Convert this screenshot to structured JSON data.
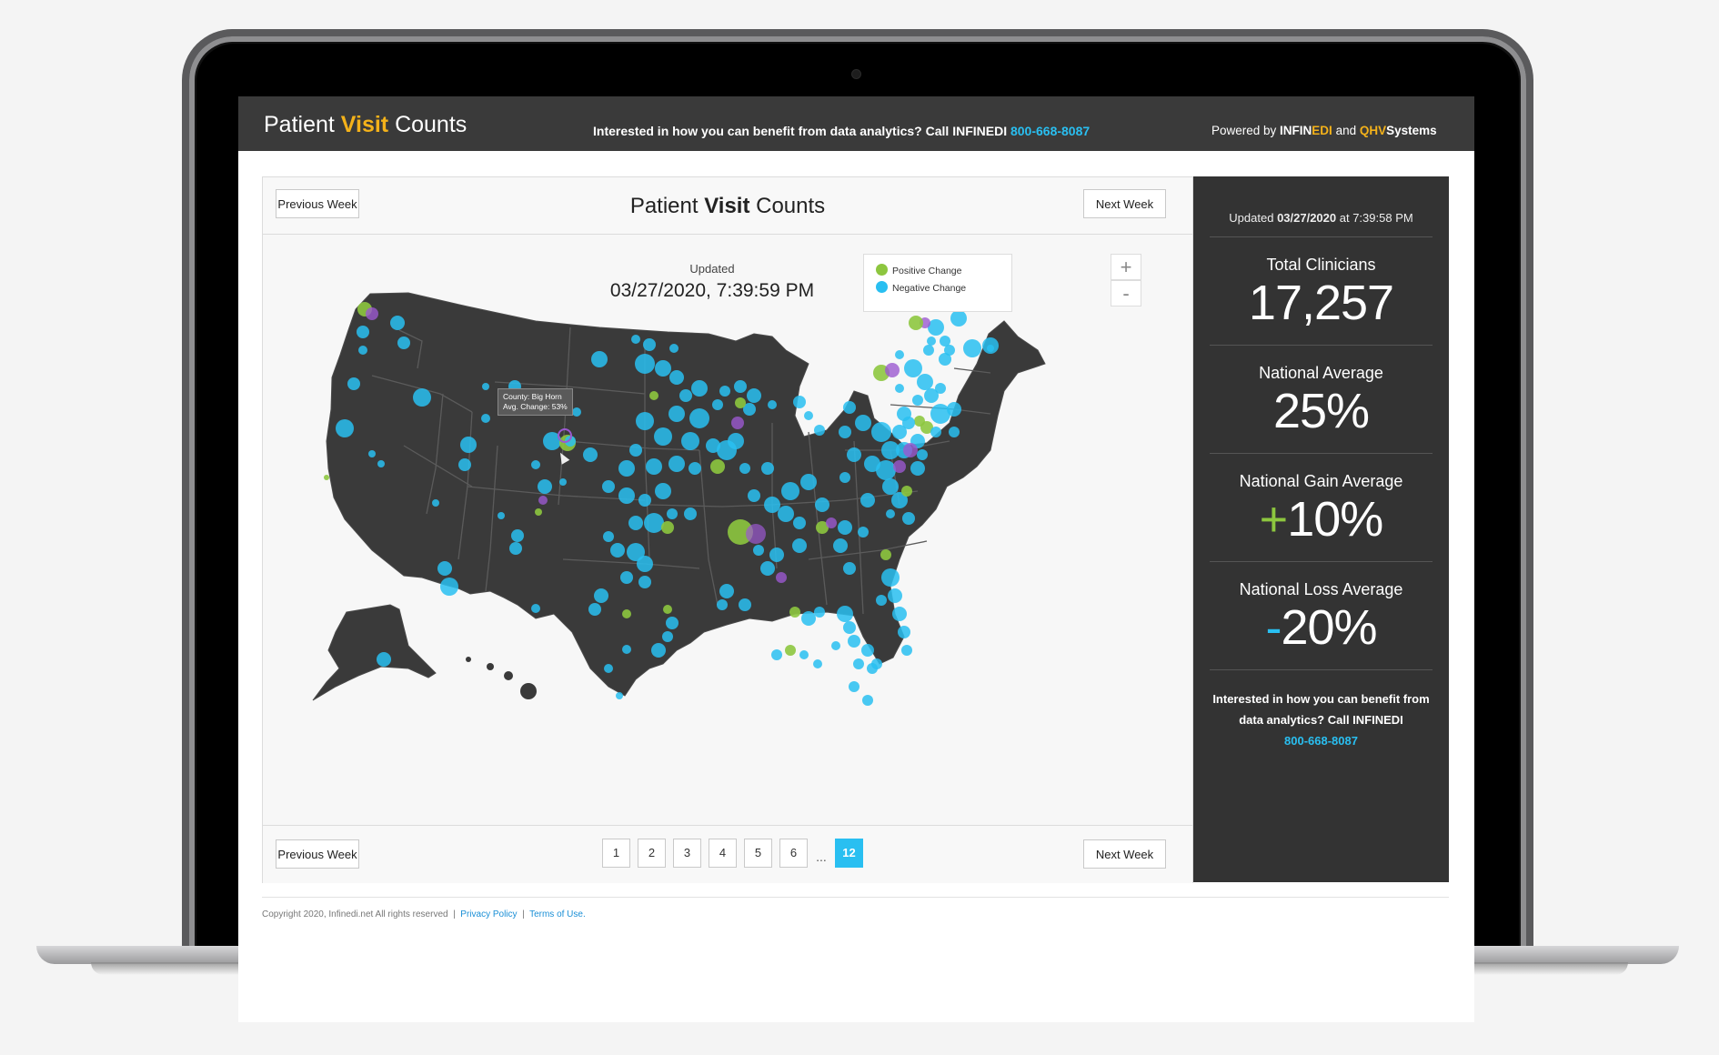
{
  "header": {
    "brand_part1": "Patient ",
    "brand_part2": "Visit",
    "brand_part3": " Counts",
    "cta_text": "Interested in how you can benefit from data analytics?  Call INFINEDI ",
    "cta_phone": "800-668-8087",
    "powered_prefix": "Powered by ",
    "powered_infin": "INFIN",
    "powered_edi": "EDI",
    "powered_and": " and ",
    "powered_qhv": "QHV",
    "powered_systems": "Systems"
  },
  "panel": {
    "prev_week_label": "Previous Week",
    "next_week_label": "Next Week",
    "title_part1": "Patient ",
    "title_part2": "Visit",
    "title_part3": " Counts",
    "updated_label": "Updated",
    "updated_value": "03/27/2020, 7:39:59 PM",
    "legend": [
      {
        "label": "Positive Change",
        "color": "#8dc63f"
      },
      {
        "label": "Negative Change",
        "color": "#29bff1"
      }
    ],
    "zoom_in": "+",
    "zoom_out": "-",
    "tooltip_line1": "County: Big Horn",
    "tooltip_line2": "Avg. Change: 53%",
    "pages": [
      "1",
      "2",
      "3",
      "4",
      "5",
      "6"
    ],
    "ellipsis": "...",
    "active_page": "12"
  },
  "sidebar": {
    "updated_prefix": "Updated ",
    "updated_date": "03/27/2020",
    "updated_suffix": " at 7:39:58 PM",
    "total_label": "Total Clinicians",
    "total_value": "17,257",
    "avg_label": "National Average",
    "avg_value": "25%",
    "gain_label": "National Gain Average",
    "gain_sign": "+",
    "gain_value": "10%",
    "loss_label": "National Loss Average",
    "loss_sign": "-",
    "loss_value": "20%",
    "cta_text": "Interested in how you can benefit from data analytics?  Call INFINEDI",
    "cta_phone": "800-668-8087"
  },
  "footer": {
    "copyright": "Copyright 2020, Infinedi.net All rights reserved  |  ",
    "privacy": "Privacy Policy",
    "sep": "  |  ",
    "terms": "Terms of Use."
  },
  "colors": {
    "accent_blue": "#29bff1",
    "accent_orange": "#f4b21a",
    "positive_green": "#8dc63f",
    "purple": "#9b59d0",
    "map_land": "#3a3a3a"
  }
}
